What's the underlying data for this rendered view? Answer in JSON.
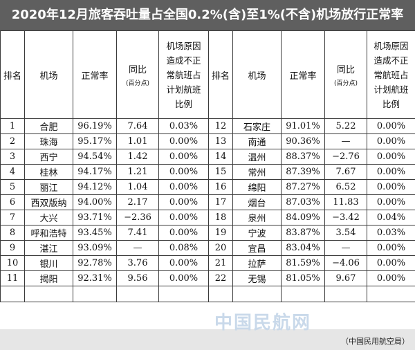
{
  "title": "2020年12月旅客吞吐量占全国0.2%(含)至1%(不含)机场放行正常率",
  "headers": {
    "rank": "排名",
    "airport": "机场",
    "rate": "正常率",
    "yoy": "同比",
    "yoy_unit": "(百分点)",
    "airline_ratio_lines": [
      "机场原因",
      "造成不正",
      "常航班占",
      "计划航班",
      "比例"
    ]
  },
  "rows_left": [
    {
      "rank": "1",
      "airport": "合肥",
      "rate": "96.19%",
      "yoy": "7.64",
      "ratio": "0.03%"
    },
    {
      "rank": "2",
      "airport": "珠海",
      "rate": "95.17%",
      "yoy": "1.01",
      "ratio": "0.00%"
    },
    {
      "rank": "3",
      "airport": "西宁",
      "rate": "94.54%",
      "yoy": "1.42",
      "ratio": "0.00%"
    },
    {
      "rank": "4",
      "airport": "桂林",
      "rate": "94.17%",
      "yoy": "1.21",
      "ratio": "0.00%"
    },
    {
      "rank": "5",
      "airport": "丽江",
      "rate": "94.12%",
      "yoy": "1.04",
      "ratio": "0.00%"
    },
    {
      "rank": "6",
      "airport": "西双版纳",
      "rate": "94.00%",
      "yoy": "2.17",
      "ratio": "0.00%"
    },
    {
      "rank": "7",
      "airport": "大兴",
      "rate": "93.71%",
      "yoy": "−2.36",
      "ratio": "0.00%"
    },
    {
      "rank": "8",
      "airport": "呼和浩特",
      "rate": "93.45%",
      "yoy": "7.41",
      "ratio": "0.00%"
    },
    {
      "rank": "9",
      "airport": "湛江",
      "rate": "93.09%",
      "yoy": "—",
      "ratio": "0.08%"
    },
    {
      "rank": "10",
      "airport": "银川",
      "rate": "92.78%",
      "yoy": "3.76",
      "ratio": "0.00%"
    },
    {
      "rank": "11",
      "airport": "揭阳",
      "rate": "92.31%",
      "yoy": "9.56",
      "ratio": "0.00%"
    }
  ],
  "rows_right": [
    {
      "rank": "12",
      "airport": "石家庄",
      "rate": "91.01%",
      "yoy": "5.22",
      "ratio": "0.00%"
    },
    {
      "rank": "13",
      "airport": "南通",
      "rate": "90.36%",
      "yoy": "—",
      "ratio": "0.00%"
    },
    {
      "rank": "14",
      "airport": "温州",
      "rate": "88.37%",
      "yoy": "−2.76",
      "ratio": "0.00%"
    },
    {
      "rank": "15",
      "airport": "常州",
      "rate": "87.39%",
      "yoy": "7.67",
      "ratio": "0.00%"
    },
    {
      "rank": "16",
      "airport": "绵阳",
      "rate": "87.27%",
      "yoy": "6.52",
      "ratio": "0.00%"
    },
    {
      "rank": "17",
      "airport": "烟台",
      "rate": "87.03%",
      "yoy": "11.83",
      "ratio": "0.00%"
    },
    {
      "rank": "18",
      "airport": "泉州",
      "rate": "84.09%",
      "yoy": "−3.42",
      "ratio": "0.04%"
    },
    {
      "rank": "19",
      "airport": "宁波",
      "rate": "83.87%",
      "yoy": "3.54",
      "ratio": "0.03%"
    },
    {
      "rank": "20",
      "airport": "宜昌",
      "rate": "83.04%",
      "yoy": "—",
      "ratio": "0.00%"
    },
    {
      "rank": "21",
      "airport": "拉萨",
      "rate": "81.59%",
      "yoy": "−4.06",
      "ratio": "0.00%"
    },
    {
      "rank": "22",
      "airport": "无锡",
      "rate": "81.05%",
      "yoy": "9.67",
      "ratio": "0.00%"
    }
  ],
  "watermark": "中国民航网",
  "source": "（中国民用航空局）"
}
